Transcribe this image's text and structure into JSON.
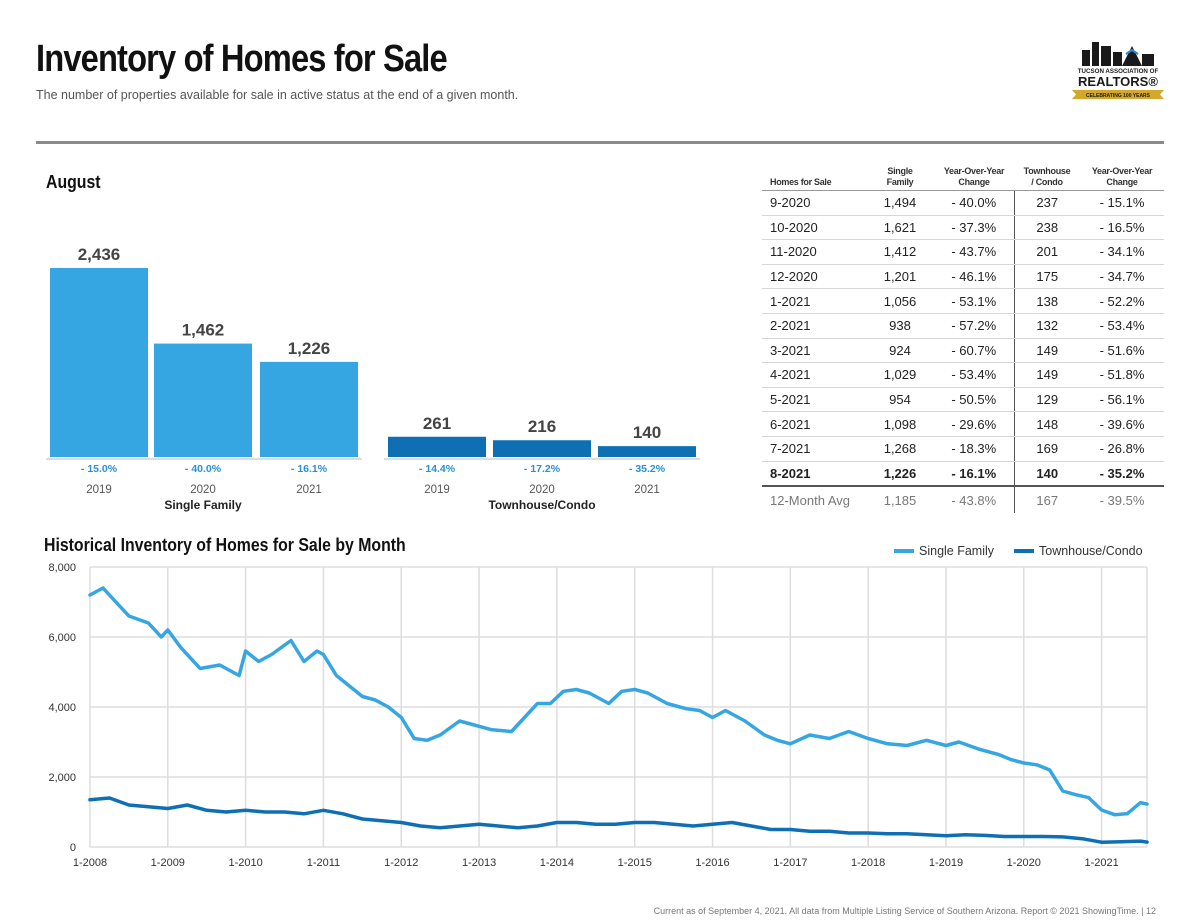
{
  "header": {
    "title": "Inventory of Homes for Sale",
    "subtitle": "The number of properties available for sale in active status at the end of a given month."
  },
  "logo": {
    "line1": "TUCSON ASSOCIATION OF",
    "line2": "REALTORS®",
    "ribbon": "CELEBRATING 100 YEARS",
    "colors": {
      "dark": "#1a1a1a",
      "gold": "#d4a82a",
      "blue": "#2a8fd4"
    }
  },
  "august": {
    "title": "August",
    "colors": {
      "single_family": "#36a6e2",
      "townhouse": "#0f6fb5",
      "change_text": "#2a8fd4"
    }
  },
  "table": {
    "headers": {
      "lead": "Homes for Sale",
      "single_a": "Single",
      "single_b": "Family",
      "yoy1_a": "Year-Over-Year",
      "yoy1_b": "Change",
      "town_a": "Townhouse",
      "town_b": "/ Condo",
      "yoy2_a": "Year-Over-Year",
      "yoy2_b": "Change"
    },
    "rows": [
      {
        "month": "9-2020",
        "single": "1,494",
        "single_change": "- 40.0%",
        "town": "237",
        "town_change": "- 15.1%"
      },
      {
        "month": "10-2020",
        "single": "1,621",
        "single_change": "- 37.3%",
        "town": "238",
        "town_change": "- 16.5%"
      },
      {
        "month": "11-2020",
        "single": "1,412",
        "single_change": "- 43.7%",
        "town": "201",
        "town_change": "- 34.1%"
      },
      {
        "month": "12-2020",
        "single": "1,201",
        "single_change": "- 46.1%",
        "town": "175",
        "town_change": "- 34.7%"
      },
      {
        "month": "1-2021",
        "single": "1,056",
        "single_change": "- 53.1%",
        "town": "138",
        "town_change": "- 52.2%"
      },
      {
        "month": "2-2021",
        "single": "938",
        "single_change": "- 57.2%",
        "town": "132",
        "town_change": "- 53.4%"
      },
      {
        "month": "3-2021",
        "single": "924",
        "single_change": "- 60.7%",
        "town": "149",
        "town_change": "- 51.6%"
      },
      {
        "month": "4-2021",
        "single": "1,029",
        "single_change": "- 53.4%",
        "town": "149",
        "town_change": "- 51.8%"
      },
      {
        "month": "5-2021",
        "single": "954",
        "single_change": "- 50.5%",
        "town": "129",
        "town_change": "- 56.1%"
      },
      {
        "month": "6-2021",
        "single": "1,098",
        "single_change": "- 29.6%",
        "town": "148",
        "town_change": "- 39.6%"
      },
      {
        "month": "7-2021",
        "single": "1,268",
        "single_change": "- 18.3%",
        "town": "169",
        "town_change": "- 26.8%"
      },
      {
        "month": "8-2021",
        "single": "1,226",
        "single_change": "- 16.1%",
        "town": "140",
        "town_change": "- 35.2%"
      }
    ],
    "avg": {
      "month": "12-Month Avg",
      "single": "1,185",
      "single_change": "- 43.8%",
      "town": "167",
      "town_change": "- 39.5%"
    }
  },
  "historical": {
    "title": "Historical Inventory of Homes for Sale by Month"
  },
  "footer": {
    "text": "Current as of September 4, 2021. All data from Multiple Listing Service of Southern Arizona. Report © 2021 ShowingTime.  |  12"
  },
  "chart_data": [
    {
      "type": "bar",
      "title": "August",
      "groups": [
        {
          "name": "Single Family",
          "categories": [
            "2019",
            "2020",
            "2021"
          ],
          "values": [
            2436,
            1462,
            1226
          ],
          "value_labels": [
            "2,436",
            "1,462",
            "1,226"
          ],
          "changes": [
            "- 15.0%",
            "- 40.0%",
            "- 16.1%"
          ]
        },
        {
          "name": "Townhouse/Condo",
          "categories": [
            "2019",
            "2020",
            "2021"
          ],
          "values": [
            261,
            216,
            140
          ],
          "value_labels": [
            "261",
            "216",
            "140"
          ],
          "changes": [
            "- 14.4%",
            "- 17.2%",
            "- 35.2%"
          ]
        }
      ],
      "ylim": [
        0,
        2436
      ],
      "grid": false
    },
    {
      "type": "line",
      "title": "Historical Inventory of Homes for Sale by Month",
      "x_start": "1-2008",
      "x_end": "8-2021",
      "x_ticks": [
        "1-2008",
        "1-2009",
        "1-2010",
        "1-2011",
        "1-2012",
        "1-2013",
        "1-2014",
        "1-2015",
        "1-2016",
        "1-2017",
        "1-2018",
        "1-2019",
        "1-2020",
        "1-2021"
      ],
      "y_ticks": [
        "0",
        "2,000",
        "4,000",
        "6,000",
        "8,000"
      ],
      "ylim": [
        0,
        8000
      ],
      "grid": true,
      "legend_position": "top-right",
      "series": [
        {
          "name": "Single Family",
          "color": "#36a6e2",
          "x": [
            "1-2008",
            "3-2008",
            "5-2008",
            "7-2008",
            "10-2008",
            "12-2008",
            "1-2009",
            "3-2009",
            "6-2009",
            "9-2009",
            "12-2009",
            "1-2010",
            "3-2010",
            "5-2010",
            "8-2010",
            "10-2010",
            "12-2010",
            "1-2011",
            "3-2011",
            "5-2011",
            "7-2011",
            "9-2011",
            "11-2011",
            "1-2012",
            "3-2012",
            "5-2012",
            "7-2012",
            "10-2012",
            "1-2013",
            "3-2013",
            "6-2013",
            "8-2013",
            "10-2013",
            "12-2013",
            "2-2014",
            "4-2014",
            "6-2014",
            "9-2014",
            "11-2014",
            "1-2015",
            "3-2015",
            "6-2015",
            "9-2015",
            "11-2015",
            "1-2016",
            "3-2016",
            "6-2016",
            "9-2016",
            "11-2016",
            "1-2017",
            "4-2017",
            "7-2017",
            "10-2017",
            "1-2018",
            "4-2018",
            "7-2018",
            "10-2018",
            "1-2019",
            "3-2019",
            "6-2019",
            "9-2019",
            "11-2019",
            "1-2020",
            "3-2020",
            "5-2020",
            "7-2020",
            "9-2020",
            "11-2020",
            "1-2021",
            "3-2021",
            "5-2021",
            "7-2021",
            "8-2021"
          ],
          "values": [
            7200,
            7400,
            7000,
            6600,
            6400,
            6000,
            6200,
            5700,
            5100,
            5200,
            4900,
            5600,
            5300,
            5500,
            5900,
            5300,
            5600,
            5500,
            4900,
            4600,
            4300,
            4200,
            4000,
            3700,
            3100,
            3050,
            3200,
            3600,
            3450,
            3350,
            3300,
            3700,
            4100,
            4100,
            4450,
            4500,
            4400,
            4100,
            4450,
            4500,
            4400,
            4100,
            3950,
            3900,
            3700,
            3900,
            3600,
            3200,
            3050,
            2950,
            3200,
            3100,
            3300,
            3100,
            2950,
            2900,
            3050,
            2900,
            3000,
            2800,
            2650,
            2500,
            2400,
            2350,
            2200,
            1600,
            1494,
            1412,
            1056,
            924,
            954,
            1268,
            1226
          ]
        },
        {
          "name": "Townhouse/Condo",
          "color": "#0f6fb5",
          "x": [
            "1-2008",
            "4-2008",
            "7-2008",
            "10-2008",
            "1-2009",
            "4-2009",
            "7-2009",
            "10-2009",
            "1-2010",
            "4-2010",
            "7-2010",
            "10-2010",
            "1-2011",
            "4-2011",
            "7-2011",
            "10-2011",
            "1-2012",
            "4-2012",
            "7-2012",
            "10-2012",
            "1-2013",
            "4-2013",
            "7-2013",
            "10-2013",
            "1-2014",
            "4-2014",
            "7-2014",
            "10-2014",
            "1-2015",
            "4-2015",
            "7-2015",
            "10-2015",
            "1-2016",
            "4-2016",
            "7-2016",
            "10-2016",
            "1-2017",
            "4-2017",
            "7-2017",
            "10-2017",
            "1-2018",
            "4-2018",
            "7-2018",
            "10-2018",
            "1-2019",
            "4-2019",
            "7-2019",
            "10-2019",
            "1-2020",
            "4-2020",
            "7-2020",
            "10-2020",
            "1-2021",
            "4-2021",
            "7-2021",
            "8-2021"
          ],
          "values": [
            1350,
            1400,
            1200,
            1150,
            1100,
            1200,
            1050,
            1000,
            1050,
            1000,
            1000,
            950,
            1050,
            950,
            800,
            750,
            700,
            600,
            550,
            600,
            650,
            600,
            550,
            600,
            700,
            700,
            650,
            650,
            700,
            700,
            650,
            600,
            650,
            700,
            600,
            500,
            500,
            450,
            450,
            400,
            400,
            380,
            380,
            350,
            320,
            350,
            330,
            300,
            300,
            300,
            290,
            238,
            138,
            149,
            169,
            140
          ]
        }
      ]
    }
  ]
}
